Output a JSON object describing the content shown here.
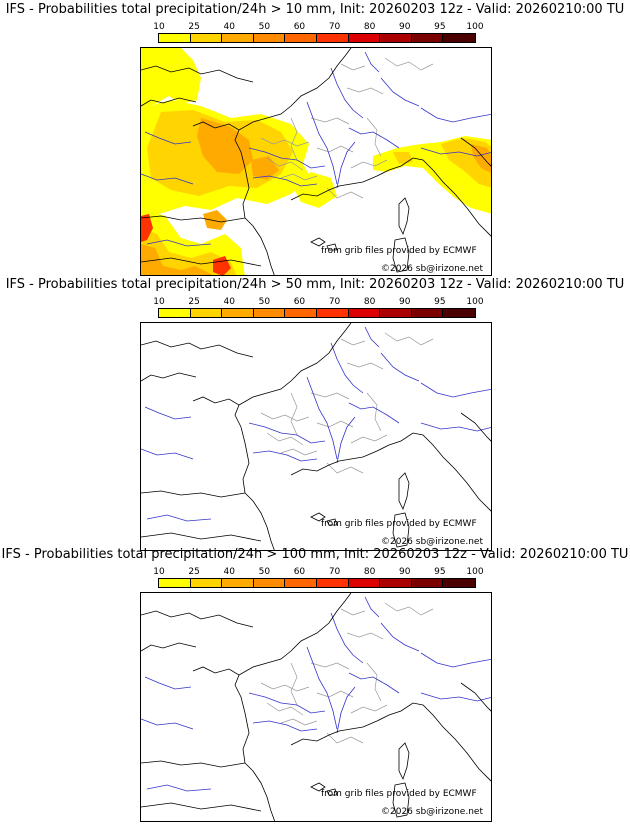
{
  "panels": [
    {
      "title": "IFS - Probabilities total precipitation/24h > 10 mm, Init: 20260203 12z - Valid: 20260210:00 TU",
      "has_precip": true
    },
    {
      "title": "IFS - Probabilities total precipitation/24h > 50 mm, Init: 20260203 12z - Valid: 20260210:00 TU",
      "has_precip": false
    },
    {
      "title": "IFS - Probabilities total precipitation/24h > 100 mm, Init: 20260203 12z - Valid: 20260210:00 TU",
      "has_precip": false
    }
  ],
  "scale": {
    "labels": [
      "10",
      "25",
      "40",
      "50",
      "60",
      "70",
      "80",
      "90",
      "95",
      "100"
    ],
    "colors": [
      "#ffff00",
      "#ffd400",
      "#ffaa00",
      "#ff8c00",
      "#ff6600",
      "#ff3300",
      "#dd0000",
      "#aa0000",
      "#7a0000",
      "#4a0000"
    ]
  },
  "credits": {
    "source": "from grib files provided by ECMWF",
    "copyright": "©2026 sb@irizone.net"
  },
  "map_colors": {
    "coast": "#000000",
    "rivers": "#3333cc",
    "admin": "#999999"
  }
}
